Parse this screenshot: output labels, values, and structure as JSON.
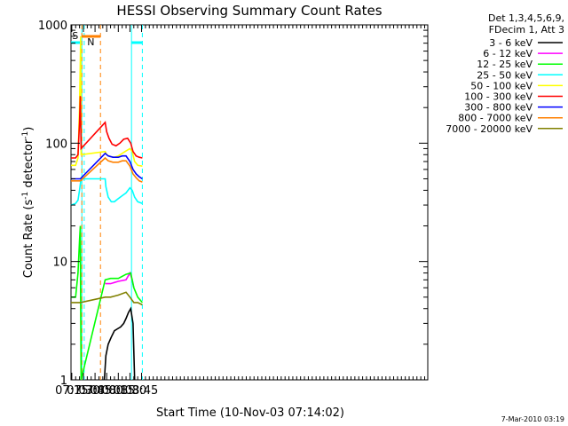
{
  "chart_data": {
    "type": "line",
    "title": "HESSI Observing Summary Count Rates",
    "xlabel": "Start Time (10-Nov-03 07:14:02)",
    "ylabel_main": "Count Rate (s",
    "ylabel_sup1": "-1",
    "ylabel_mid": " detector",
    "ylabel_sup2": "-1",
    "ylabel_end": ")",
    "x_range_min": [
      434,
      894
    ],
    "y_range": [
      1,
      1000
    ],
    "y_scale": "log",
    "x_ticks": [
      {
        "min": 435,
        "label": "07:15"
      },
      {
        "min": 450,
        "label": "07:30"
      },
      {
        "min": 465,
        "label": "07:45"
      },
      {
        "min": 480,
        "label": "08:00"
      },
      {
        "min": 495,
        "label": "08:15"
      },
      {
        "min": 510,
        "label": "08:30"
      },
      {
        "min": 525,
        "label": "08:45"
      }
    ],
    "y_ticks": [
      {
        "value": 1,
        "label": "1"
      },
      {
        "value": 10,
        "label": "10"
      },
      {
        "value": 100,
        "label": "100"
      },
      {
        "value": 1000,
        "label": "1000"
      }
    ],
    "legend_header": [
      "Det 1,3,4,5,6,9,",
      "FDecim 1, Att 3"
    ],
    "series": [
      {
        "name": "3 - 6 keV",
        "color": "#000000",
        "points": [
          [
            477,
            1
          ],
          [
            479,
            1.6
          ],
          [
            482,
            2
          ],
          [
            486,
            2.3
          ],
          [
            490,
            2.6
          ],
          [
            494,
            2.7
          ],
          [
            498,
            2.8
          ],
          [
            502,
            3
          ],
          [
            505,
            3.3
          ],
          [
            508,
            3.7
          ],
          [
            511,
            4
          ],
          [
            514,
            3
          ],
          [
            516,
            1
          ]
        ]
      },
      {
        "name": "6 - 12 keV",
        "color": "#ff00ff",
        "points": [
          [
            478,
            6.5
          ],
          [
            485,
            6.5
          ],
          [
            495,
            6.8
          ],
          [
            505,
            7
          ],
          [
            510,
            8
          ],
          [
            513,
            7
          ],
          [
            515,
            6
          ]
        ]
      },
      {
        "name": "12 - 25 keV",
        "color": "#00ff00",
        "points": [
          [
            434,
            5
          ],
          [
            440,
            5
          ],
          [
            443,
            8
          ],
          [
            445,
            15
          ],
          [
            446,
            20
          ],
          [
            446.5,
            4
          ],
          [
            447,
            1
          ],
          [
            478,
            7
          ],
          [
            485,
            7.2
          ],
          [
            495,
            7.2
          ],
          [
            505,
            7.8
          ],
          [
            511,
            8
          ],
          [
            515,
            6
          ],
          [
            520,
            5
          ],
          [
            526,
            4.5
          ]
        ]
      },
      {
        "name": "25 - 50 keV",
        "color": "#00ffff",
        "points": [
          [
            434,
            30
          ],
          [
            440,
            31
          ],
          [
            443,
            33
          ],
          [
            445,
            40
          ],
          [
            446,
            45
          ],
          [
            447,
            50
          ],
          [
            478,
            50
          ],
          [
            479,
            43
          ],
          [
            482,
            35
          ],
          [
            486,
            32
          ],
          [
            490,
            32
          ],
          [
            495,
            34
          ],
          [
            500,
            36
          ],
          [
            505,
            38
          ],
          [
            510,
            42
          ],
          [
            513,
            40
          ],
          [
            516,
            35
          ],
          [
            520,
            32
          ],
          [
            526,
            31
          ]
        ]
      },
      {
        "name": "50 - 100 keV",
        "color": "#ffff00",
        "points": [
          [
            434,
            65
          ],
          [
            440,
            65
          ],
          [
            443,
            75
          ],
          [
            445,
            200
          ],
          [
            446,
            500
          ],
          [
            446.5,
            800
          ],
          [
            447,
            80
          ],
          [
            478,
            85
          ],
          [
            480,
            80
          ],
          [
            484,
            77
          ],
          [
            490,
            76
          ],
          [
            495,
            78
          ],
          [
            500,
            82
          ],
          [
            505,
            86
          ],
          [
            510,
            90
          ],
          [
            513,
            85
          ],
          [
            516,
            70
          ],
          [
            520,
            65
          ],
          [
            526,
            64
          ]
        ]
      },
      {
        "name": "100 - 300 keV",
        "color": "#ff0000",
        "points": [
          [
            434,
            75
          ],
          [
            440,
            75
          ],
          [
            443,
            80
          ],
          [
            445,
            150
          ],
          [
            446,
            250
          ],
          [
            447,
            90
          ],
          [
            478,
            150
          ],
          [
            480,
            125
          ],
          [
            483,
            110
          ],
          [
            487,
            98
          ],
          [
            492,
            95
          ],
          [
            497,
            100
          ],
          [
            502,
            108
          ],
          [
            507,
            110
          ],
          [
            511,
            100
          ],
          [
            514,
            85
          ],
          [
            518,
            78
          ],
          [
            522,
            76
          ],
          [
            526,
            75
          ]
        ]
      },
      {
        "name": "300 - 800 keV",
        "color": "#0000ff",
        "points": [
          [
            434,
            50
          ],
          [
            446,
            50
          ],
          [
            478,
            82
          ],
          [
            482,
            78
          ],
          [
            488,
            76
          ],
          [
            495,
            76
          ],
          [
            500,
            78
          ],
          [
            505,
            78
          ],
          [
            510,
            70
          ],
          [
            514,
            60
          ],
          [
            518,
            55
          ],
          [
            522,
            52
          ],
          [
            526,
            50
          ]
        ]
      },
      {
        "name": "800 - 7000 keV",
        "color": "#ff8000",
        "points": [
          [
            434,
            48
          ],
          [
            446,
            48
          ],
          [
            478,
            75
          ],
          [
            482,
            71
          ],
          [
            488,
            69
          ],
          [
            495,
            69
          ],
          [
            500,
            71
          ],
          [
            505,
            71
          ],
          [
            510,
            64
          ],
          [
            514,
            55
          ],
          [
            518,
            51
          ],
          [
            522,
            48
          ],
          [
            526,
            47
          ]
        ]
      },
      {
        "name": "7000 - 20000 keV",
        "color": "#808000",
        "points": [
          [
            434,
            4.5
          ],
          [
            446,
            4.5
          ],
          [
            478,
            5
          ],
          [
            485,
            5
          ],
          [
            495,
            5.2
          ],
          [
            505,
            5.5
          ],
          [
            510,
            5
          ],
          [
            515,
            4.5
          ],
          [
            520,
            4.5
          ],
          [
            526,
            4.3
          ]
        ]
      }
    ],
    "saa_label": "S",
    "night_label": "N",
    "saa_interval_min": [
      448,
      472
    ],
    "night_interval_min": [
      434,
      448
    ],
    "night_interval2_min": [
      512,
      526
    ],
    "cyan_lines_min": [
      448,
      512
    ],
    "cyan_dashed_min": [
      451,
      526
    ],
    "orange_dashed_min": [
      448,
      472
    ]
  },
  "footer_date": "7-Mar-2010 03:19"
}
